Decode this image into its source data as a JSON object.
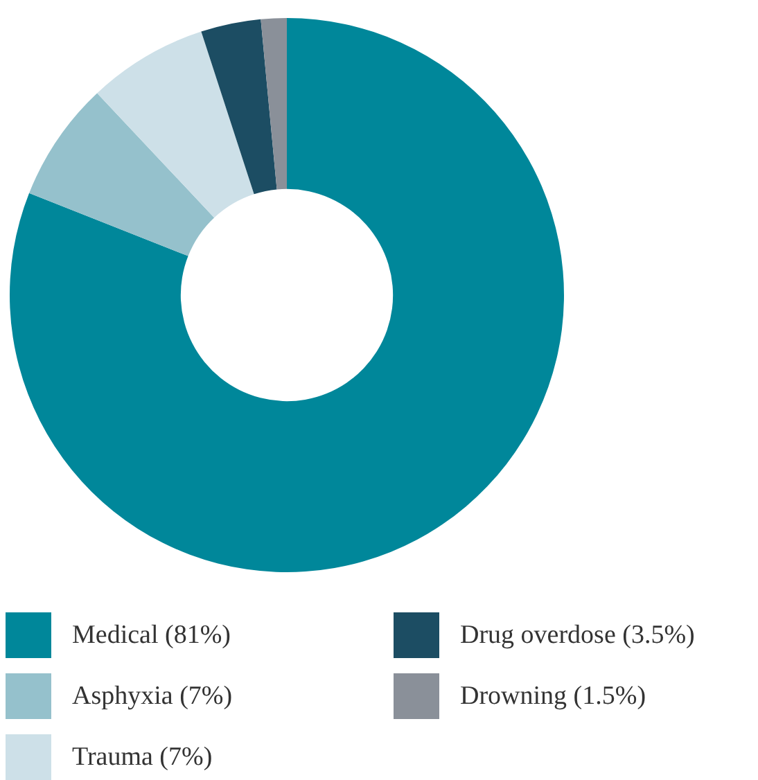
{
  "chart_data": {
    "type": "donut",
    "categories": [
      "Medical (81%)",
      "Asphyxia (7%)",
      "Trauma (7%)",
      "Drug overdose (3.5%)",
      "Drowning (1.5%)"
    ],
    "values": [
      81,
      7,
      7,
      3.5,
      1.5
    ],
    "colors": [
      "#00879a",
      "#95c1cc",
      "#cde0e8",
      "#1c4d63",
      "#8a9099"
    ],
    "legend": "bottom"
  }
}
